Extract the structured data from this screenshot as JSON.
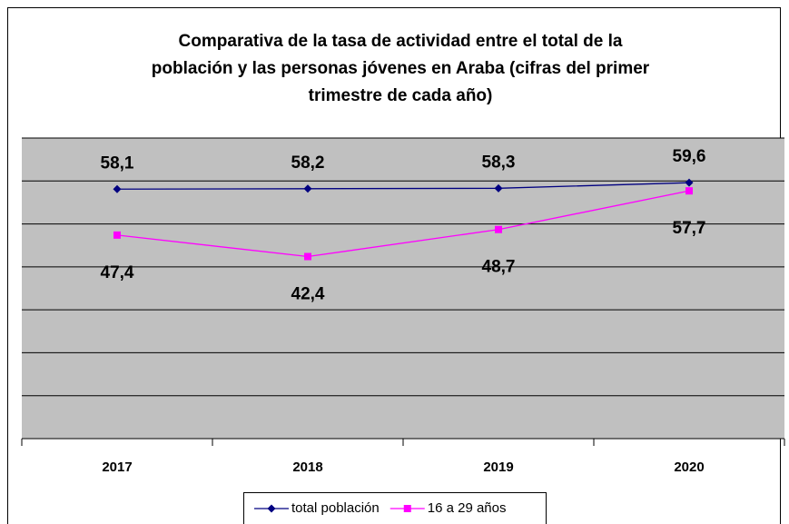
{
  "chart_data": {
    "type": "line",
    "title": [
      "Comparativa de la tasa de actividad entre el total de la",
      "población y las personas jóvenes en Araba (cifras del primer",
      "trimestre de cada año)"
    ],
    "categories": [
      "2017",
      "2018",
      "2019",
      "2020"
    ],
    "series": [
      {
        "name": "total población",
        "color": "#000080",
        "marker": "diamond",
        "values": [
          58.1,
          58.2,
          58.3,
          59.6
        ],
        "value_labels": [
          "58,1",
          "58,2",
          "58,3",
          "59,6"
        ]
      },
      {
        "name": "16 a 29 años",
        "color": "#ff00ff",
        "marker": "square",
        "values": [
          47.4,
          42.4,
          48.7,
          57.7
        ],
        "value_labels": [
          "47,4",
          "42,4",
          "48,7",
          "57,7"
        ]
      }
    ],
    "ylim": [
      0,
      70
    ],
    "yticks": [
      0,
      10,
      20,
      30,
      40,
      50,
      60,
      70
    ],
    "grid": true,
    "legend": "bottom"
  }
}
